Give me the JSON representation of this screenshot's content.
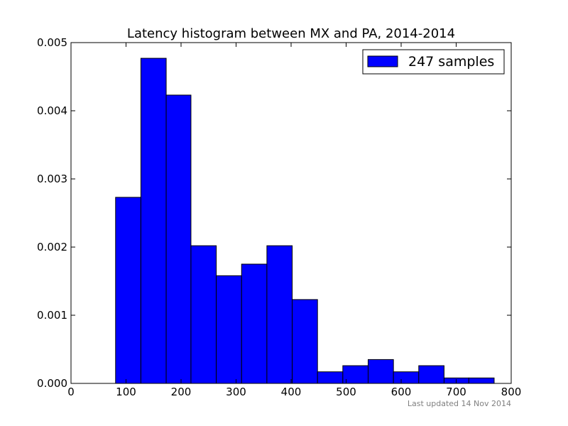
{
  "chart_data": {
    "type": "bar",
    "title": "Latency histogram between MX and PA, 2014-2014",
    "xlabel": "",
    "ylabel": "",
    "xlim": [
      0,
      800
    ],
    "ylim": [
      0,
      0.005
    ],
    "x_ticks": [
      "0",
      "100",
      "200",
      "300",
      "400",
      "500",
      "600",
      "700",
      "800"
    ],
    "y_ticks": [
      "0.000",
      "0.001",
      "0.002",
      "0.003",
      "0.004",
      "0.005"
    ],
    "grid": false,
    "legend_position": "top-right",
    "colors": {
      "bar": "#0000ff",
      "edge": "#000000",
      "axis": "#000000"
    },
    "series": [
      {
        "name": "247 samples",
        "bins": [
          {
            "x0": 81,
            "x1": 127,
            "value": 0.00273
          },
          {
            "x0": 127,
            "x1": 173,
            "value": 0.00477
          },
          {
            "x0": 173,
            "x1": 218,
            "value": 0.00423
          },
          {
            "x0": 218,
            "x1": 264,
            "value": 0.00202
          },
          {
            "x0": 264,
            "x1": 310,
            "value": 0.00158
          },
          {
            "x0": 310,
            "x1": 356,
            "value": 0.00175
          },
          {
            "x0": 356,
            "x1": 402,
            "value": 0.00202
          },
          {
            "x0": 402,
            "x1": 448,
            "value": 0.00123
          },
          {
            "x0": 448,
            "x1": 494,
            "value": 0.00017
          },
          {
            "x0": 494,
            "x1": 540,
            "value": 0.00026
          },
          {
            "x0": 540,
            "x1": 586,
            "value": 0.00035
          },
          {
            "x0": 586,
            "x1": 632,
            "value": 0.00017
          },
          {
            "x0": 632,
            "x1": 678,
            "value": 0.00026
          },
          {
            "x0": 678,
            "x1": 723,
            "value": 8e-05
          },
          {
            "x0": 723,
            "x1": 769,
            "value": 8e-05
          }
        ]
      }
    ]
  },
  "footer": {
    "updated": "Last updated 14 Nov 2014"
  }
}
